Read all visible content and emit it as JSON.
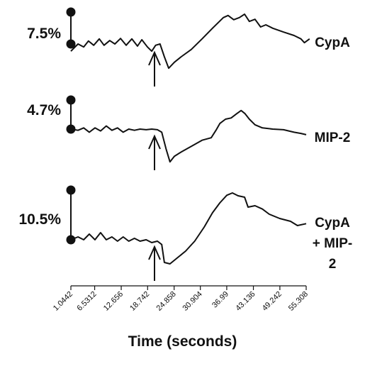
{
  "chart_data": {
    "type": "line",
    "xlabel": "Time (seconds)",
    "xlim": [
      1.0442,
      55.308
    ],
    "xticks": [
      1.0442,
      6.5312,
      12.656,
      18.742,
      24.858,
      30.904,
      36.99,
      43.136,
      49.242,
      55.308
    ],
    "series": [
      {
        "name": "CypA",
        "color": "#111111",
        "scale_bar": {
          "value": 7.5,
          "label": "7.5%"
        },
        "x": [
          1.04,
          2.7,
          4.0,
          5.1,
          6.3,
          7.6,
          8.7,
          10.0,
          11.2,
          12.5,
          13.8,
          15.1,
          16.4,
          17.4,
          18.7,
          19.7,
          20.6,
          21.6,
          22.6,
          23.6,
          24.9,
          26.5,
          28.8,
          31.3,
          33.7,
          36.2,
          37.3,
          38.6,
          39.9,
          41.1,
          42.2,
          43.5,
          44.8,
          46.0,
          47.6,
          50.1,
          52.5,
          54.1,
          54.9,
          56.1
        ],
        "values": [
          -1.7,
          0,
          -0.7,
          0.7,
          -0.3,
          1.2,
          -0.3,
          0.8,
          0,
          1.3,
          -0.3,
          1.2,
          -0.5,
          1.0,
          -0.7,
          -1.7,
          -0.3,
          0,
          -3.0,
          -5.7,
          -4.3,
          -3.0,
          -1.3,
          1.2,
          3.7,
          6.2,
          6.7,
          5.7,
          6.2,
          7.0,
          5.3,
          5.8,
          4.0,
          4.5,
          3.7,
          2.8,
          2.0,
          1.2,
          0.3,
          1.2
        ]
      },
      {
        "name": "MIP-2",
        "color": "#111111",
        "scale_bar": {
          "value": 4.7,
          "label": "4.7%"
        },
        "x": [
          1.04,
          2.7,
          4.0,
          5.3,
          6.6,
          7.9,
          9.2,
          10.5,
          11.8,
          13.1,
          14.4,
          15.7,
          17.0,
          18.4,
          19.7,
          21.0,
          22.0,
          23.0,
          23.9,
          24.9,
          26.5,
          28.8,
          31.3,
          33.4,
          34.5,
          35.4,
          36.7,
          38.0,
          39.3,
          40.3,
          41.2,
          42.2,
          43.5,
          45.2,
          47.6,
          50.1,
          52.5,
          54.1,
          55.3
        ],
        "values": [
          0,
          -0.2,
          0.2,
          -0.5,
          0.2,
          -0.3,
          0.5,
          -0.2,
          0.2,
          -0.5,
          0,
          -0.2,
          0,
          -0.1,
          0,
          -0.1,
          -0.5,
          -3.2,
          -5.3,
          -4.4,
          -3.7,
          -2.8,
          -1.8,
          -1.4,
          -0.2,
          0.9,
          1.6,
          1.8,
          2.5,
          3.0,
          2.5,
          1.6,
          0.7,
          0.2,
          0,
          -0.1,
          -0.5,
          -0.7,
          -0.9
        ]
      },
      {
        "name": "CypA + MIP-2",
        "color": "#111111",
        "scale_bar": {
          "value": 10.5,
          "label": "10.5%"
        },
        "x": [
          1.04,
          2.7,
          4.0,
          5.3,
          6.6,
          7.9,
          9.2,
          10.5,
          11.8,
          13.1,
          14.4,
          15.7,
          17.0,
          18.4,
          19.7,
          21.0,
          22.0,
          22.6,
          23.9,
          25.5,
          27.5,
          29.6,
          31.8,
          33.7,
          35.4,
          37.0,
          38.3,
          39.6,
          41.1,
          41.9,
          43.5,
          45.2,
          46.8,
          49.2,
          51.7,
          53.3,
          55.3
        ],
        "values": [
          0,
          0.6,
          0,
          1.2,
          0,
          1.5,
          0,
          0.6,
          -0.3,
          0.6,
          -0.3,
          0.3,
          -0.3,
          0,
          -0.6,
          -0.3,
          -1.0,
          -4.8,
          -5.1,
          -3.9,
          -2.4,
          -0.3,
          2.7,
          5.7,
          7.8,
          9.4,
          9.9,
          9.3,
          9.0,
          6.9,
          7.2,
          6.5,
          5.4,
          4.5,
          3.9,
          3.0,
          3.4
        ]
      }
    ]
  }
}
